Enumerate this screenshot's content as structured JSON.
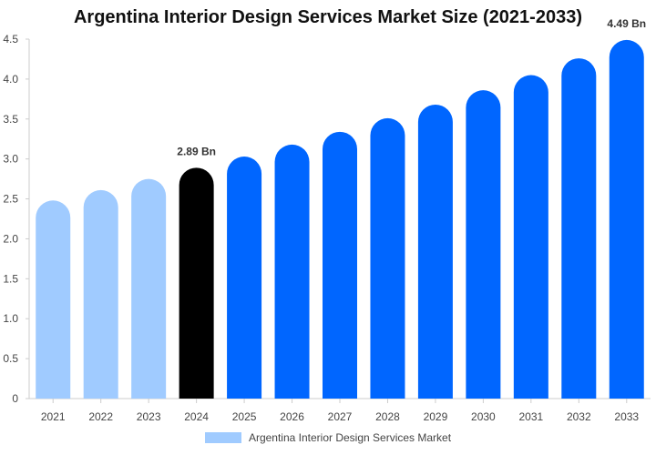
{
  "chart_data": {
    "type": "bar",
    "title": "Argentina Interior Design Services Market Size (2021-2033)",
    "categories": [
      "2021",
      "2022",
      "2023",
      "2024",
      "2025",
      "2026",
      "2027",
      "2028",
      "2029",
      "2030",
      "2031",
      "2032",
      "2033"
    ],
    "series": [
      {
        "name": "Argentina Interior Design Services Market",
        "values": [
          2.48,
          2.61,
          2.75,
          2.89,
          3.03,
          3.18,
          3.34,
          3.51,
          3.68,
          3.86,
          4.05,
          4.26,
          4.49
        ]
      }
    ],
    "bar_colors": [
      "#a0cbff",
      "#a0cbff",
      "#a0cbff",
      "#000000",
      "#0066ff",
      "#0066ff",
      "#0066ff",
      "#0066ff",
      "#0066ff",
      "#0066ff",
      "#0066ff",
      "#0066ff",
      "#0066ff"
    ],
    "data_labels": [
      {
        "category": "2024",
        "text": "2.89 Bn"
      },
      {
        "category": "2033",
        "text": "4.49 Bn"
      }
    ],
    "yticks": [
      "0",
      "0.5",
      "1.0",
      "1.5",
      "2.0",
      "2.5",
      "3.0",
      "3.5",
      "4.0",
      "4.5"
    ],
    "ylim": [
      0,
      4.5
    ],
    "xlabel": "",
    "ylabel": "",
    "grid": false,
    "legend_position": "bottom",
    "legend_color": "#a0cbff"
  }
}
